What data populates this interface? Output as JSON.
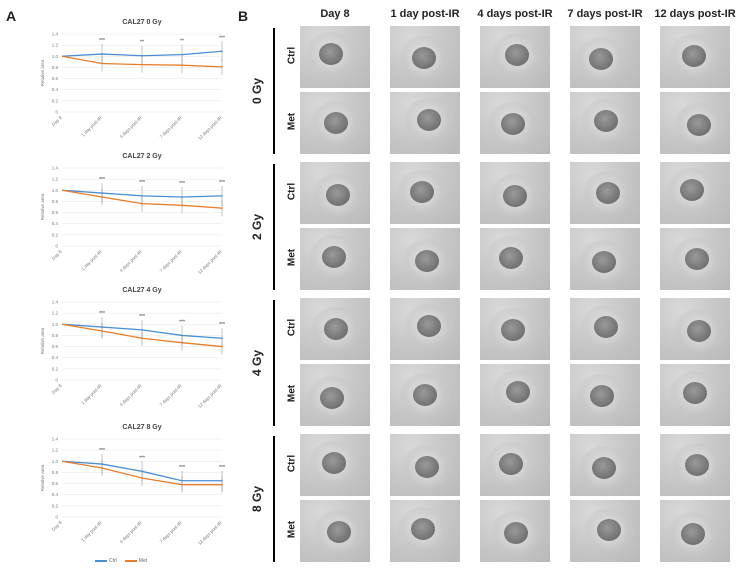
{
  "panel_a_label": "A",
  "panel_b_label": "B",
  "colors": {
    "ctrl": "#4a8fd6",
    "met": "#e87d2a"
  },
  "legend": {
    "ctrl": "Ctrl",
    "met": "Met"
  },
  "chart_data": [
    {
      "type": "line",
      "title": "CAL27 0 Gy",
      "ylabel": "Relative area",
      "categories": [
        "Day 8",
        "1 day post-IR",
        "4 days post-IR",
        "7 days post-IR",
        "12 days post-IR"
      ],
      "ylim": [
        0,
        1.4
      ],
      "yticks": [
        "0",
        "0.2",
        "0.4",
        "0.6",
        "0.8",
        "1.0",
        "1.2",
        "1.4"
      ],
      "series": [
        {
          "name": "Ctrl",
          "values": [
            1.0,
            1.04,
            1.01,
            1.03,
            1.09
          ]
        },
        {
          "name": "Met",
          "values": [
            1.0,
            0.87,
            0.85,
            0.84,
            0.81
          ]
        }
      ],
      "significance": [
        "",
        "***",
        "**",
        "**",
        "***"
      ],
      "grid": true
    },
    {
      "type": "line",
      "title": "CAL27 2 Gy",
      "ylabel": "Relative area",
      "categories": [
        "Day 8",
        "1 day post-IR",
        "4 days post-IR",
        "7 days post-IR",
        "12 days post-IR"
      ],
      "ylim": [
        0,
        1.4
      ],
      "yticks": [
        "0",
        "0.2",
        "0.4",
        "0.6",
        "0.8",
        "1.0",
        "1.2",
        "1.4"
      ],
      "series": [
        {
          "name": "Ctrl",
          "values": [
            1.0,
            0.95,
            0.9,
            0.88,
            0.9
          ]
        },
        {
          "name": "Met",
          "values": [
            1.0,
            0.88,
            0.76,
            0.73,
            0.68
          ]
        }
      ],
      "significance": [
        "",
        "***",
        "***",
        "***",
        "***"
      ],
      "grid": true
    },
    {
      "type": "line",
      "title": "CAL27 4 Gy",
      "ylabel": "Relative area",
      "categories": [
        "Day 8",
        "1 day post-IR",
        "4 days post-IR",
        "7 days post-IR",
        "12 days post-IR"
      ],
      "ylim": [
        0,
        1.4
      ],
      "yticks": [
        "0",
        "0.2",
        "0.4",
        "0.6",
        "0.8",
        "1.0",
        "1.2",
        "1.4"
      ],
      "series": [
        {
          "name": "Ctrl",
          "values": [
            1.0,
            0.95,
            0.9,
            0.8,
            0.75
          ]
        },
        {
          "name": "Met",
          "values": [
            1.0,
            0.88,
            0.75,
            0.67,
            0.6
          ]
        }
      ],
      "significance": [
        "",
        "***",
        "***",
        "***",
        "***"
      ],
      "grid": true
    },
    {
      "type": "line",
      "title": "CAL27 8 Gy",
      "ylabel": "Relative area",
      "categories": [
        "Day 8",
        "1 day post-IR",
        "4 days post-IR",
        "7 days post-IR",
        "12 days post-IR"
      ],
      "ylim": [
        0,
        1.4
      ],
      "yticks": [
        "0",
        "0.2",
        "0.4",
        "0.6",
        "0.8",
        "1.0",
        "1.2",
        "1.4"
      ],
      "series": [
        {
          "name": "Ctrl",
          "values": [
            1.0,
            0.95,
            0.82,
            0.65,
            0.65
          ]
        },
        {
          "name": "Met",
          "values": [
            1.0,
            0.88,
            0.7,
            0.58,
            0.58
          ]
        }
      ],
      "significance": [
        "",
        "***",
        "***",
        "***",
        "***"
      ],
      "grid": true
    }
  ],
  "grid_columns": [
    "Day 8",
    "1 day post-IR",
    "4 days post-IR",
    "7 days post-IR",
    "12 days post-IR"
  ],
  "grid_rows": [
    {
      "dose": "0 Gy",
      "conditions": [
        "Ctrl",
        "Met"
      ]
    },
    {
      "dose": "2 Gy",
      "conditions": [
        "Ctrl",
        "Met"
      ]
    },
    {
      "dose": "4 Gy",
      "conditions": [
        "Ctrl",
        "Met"
      ]
    },
    {
      "dose": "8 Gy",
      "conditions": [
        "Ctrl",
        "Met"
      ]
    }
  ]
}
